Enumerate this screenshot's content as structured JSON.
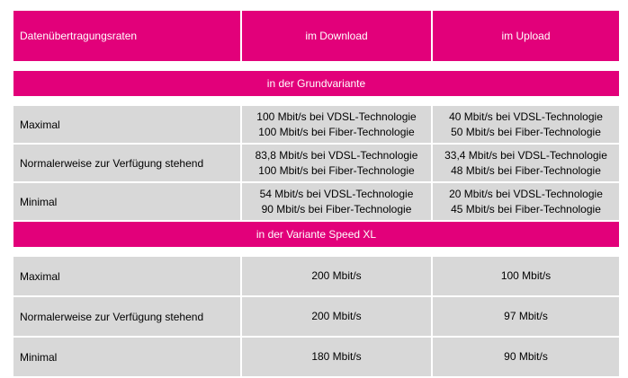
{
  "header": {
    "col1": "Datenübertragungsraten",
    "col2": "im Download",
    "col3": "im Upload"
  },
  "section1": {
    "title": "in der Grundvariante",
    "rows": [
      {
        "label": "Maximal",
        "download": [
          "100 Mbit/s bei VDSL-Technologie",
          "100 Mbit/s bei Fiber-Technologie"
        ],
        "upload": [
          "40 Mbit/s bei VDSL-Technologie",
          "50 Mbit/s bei Fiber-Technologie"
        ]
      },
      {
        "label": "Normalerweise zur Verfügung stehend",
        "download": [
          "83,8 Mbit/s bei VDSL-Technologie",
          "100 Mbit/s bei Fiber-Technologie"
        ],
        "upload": [
          "33,4 Mbit/s bei VDSL-Technologie",
          "48 Mbit/s bei Fiber-Technologie"
        ]
      },
      {
        "label": "Minimal",
        "download": [
          "54 Mbit/s bei VDSL-Technologie",
          "90 Mbit/s bei Fiber-Technologie"
        ],
        "upload": [
          "20 Mbit/s bei VDSL-Technologie",
          "45 Mbit/s bei Fiber-Technologie"
        ]
      }
    ]
  },
  "section2": {
    "title": "in der Variante Speed XL",
    "rows": [
      {
        "label": "Maximal",
        "download": "200 Mbit/s",
        "upload": "100 Mbit/s"
      },
      {
        "label": "Normalerweise zur Verfügung stehend",
        "download": "200 Mbit/s",
        "upload": "97 Mbit/s"
      },
      {
        "label": "Minimal",
        "download": "180 Mbit/s",
        "upload": "90 Mbit/s"
      }
    ]
  },
  "colors": {
    "magenta": "#e2007a",
    "row_gray": "#d8d8d8"
  }
}
